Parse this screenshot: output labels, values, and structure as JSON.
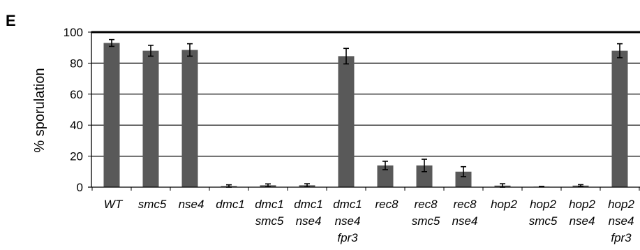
{
  "panel_label": "E",
  "chart_data": {
    "type": "bar",
    "title": "",
    "xlabel": "",
    "ylabel": "% sporulation",
    "ylim": [
      0,
      100
    ],
    "yticks": [
      0,
      20,
      40,
      60,
      80,
      100
    ],
    "grid": "horizontal",
    "legend": "none",
    "bar_color": "#595959",
    "categories": [
      [
        "WT"
      ],
      [
        "smc5"
      ],
      [
        "nse4"
      ],
      [
        "dmc1"
      ],
      [
        "dmc1",
        "smc5"
      ],
      [
        "dmc1",
        "nse4"
      ],
      [
        "dmc1",
        "nse4",
        "fpr3"
      ],
      [
        "rec8"
      ],
      [
        "rec8",
        "smc5"
      ],
      [
        "rec8",
        "nse4"
      ],
      [
        "hop2"
      ],
      [
        "hop2",
        "smc5"
      ],
      [
        "hop2",
        "nse4"
      ],
      [
        "hop2",
        "nse4",
        "fpr3"
      ]
    ],
    "values": [
      93,
      88,
      88.5,
      0.7,
      1.2,
      1.2,
      84.5,
      14,
      14,
      10,
      1,
      0.3,
      1,
      88
    ],
    "errors": [
      2.2,
      3.5,
      4,
      0.8,
      0.9,
      1,
      5,
      2.7,
      4,
      3.2,
      1.2,
      0.2,
      0.6,
      4.5
    ]
  }
}
